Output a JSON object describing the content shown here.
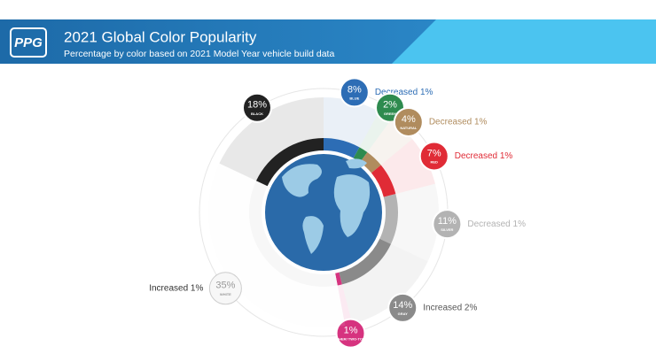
{
  "chart_data": {
    "type": "pie",
    "logo": "PPG",
    "title": "2021 Global Color Popularity",
    "subtitle": "Percentage by color based on 2021 Model Year vehicle build data",
    "categories": [
      "BLUE",
      "GREEN",
      "NATURAL",
      "RED",
      "SILVER",
      "GRAY",
      "OTHER/ TWO-TONE",
      "WHITE",
      "BLACK"
    ],
    "values": [
      8,
      2,
      4,
      7,
      11,
      14,
      1,
      35,
      18
    ],
    "value_labels": [
      "8%",
      "2%",
      "4%",
      "7%",
      "11%",
      "14%",
      "1%",
      "35%",
      "18%"
    ],
    "colors": [
      "#2d6db5",
      "#2e8b4f",
      "#b08c5e",
      "#e02b36",
      "#b3b3b3",
      "#8a8a8a",
      "#d6337f",
      "#f7f7f7",
      "#222222"
    ],
    "changes": [
      "Decreased 1%",
      null,
      "Decreased 1%",
      "Decreased 1%",
      "Decreased 1%",
      "Increased 2%",
      null,
      "Increased 1%",
      null
    ]
  }
}
